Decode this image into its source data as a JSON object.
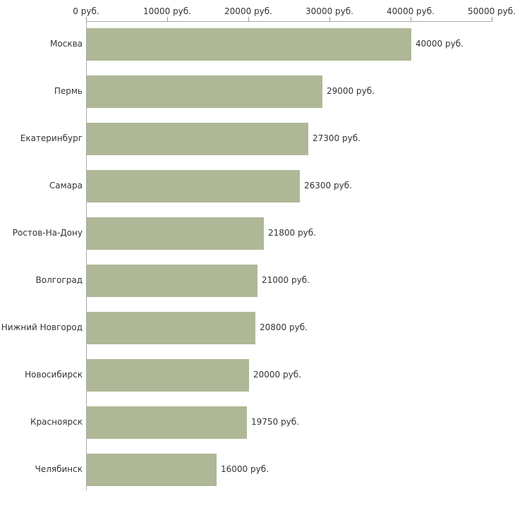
{
  "chart_data": {
    "type": "bar",
    "orientation": "horizontal",
    "title": "",
    "xlabel": "",
    "ylabel": "",
    "categories": [
      "Москва",
      "Пермь",
      "Екатеринбург",
      "Самара",
      "Ростов-На-Дону",
      "Волгоград",
      "Нижний Новгород",
      "Новосибирск",
      "Красноярск",
      "Челябинск"
    ],
    "values": [
      40000,
      29000,
      27300,
      26300,
      21800,
      21000,
      20800,
      20000,
      19750,
      16000
    ],
    "value_labels": [
      "40000 руб.",
      "29000 руб.",
      "27300 руб.",
      "26300 руб.",
      "21800 руб.",
      "21000 руб.",
      "20800 руб.",
      "20000 руб.",
      "19750 руб.",
      "16000 руб."
    ],
    "x_ticks": [
      0,
      10000,
      20000,
      30000,
      40000,
      50000
    ],
    "x_tick_labels": [
      "0 руб.",
      "10000 руб.",
      "20000 руб.",
      "30000 руб.",
      "40000 руб.",
      "50000 руб."
    ],
    "xlim": [
      0,
      50000
    ],
    "grid": false,
    "legend": "none",
    "bar_color": "#aeb896",
    "axis_color": "#aaaaaa",
    "text_color": "#333333",
    "background_color": "#ffffff"
  }
}
